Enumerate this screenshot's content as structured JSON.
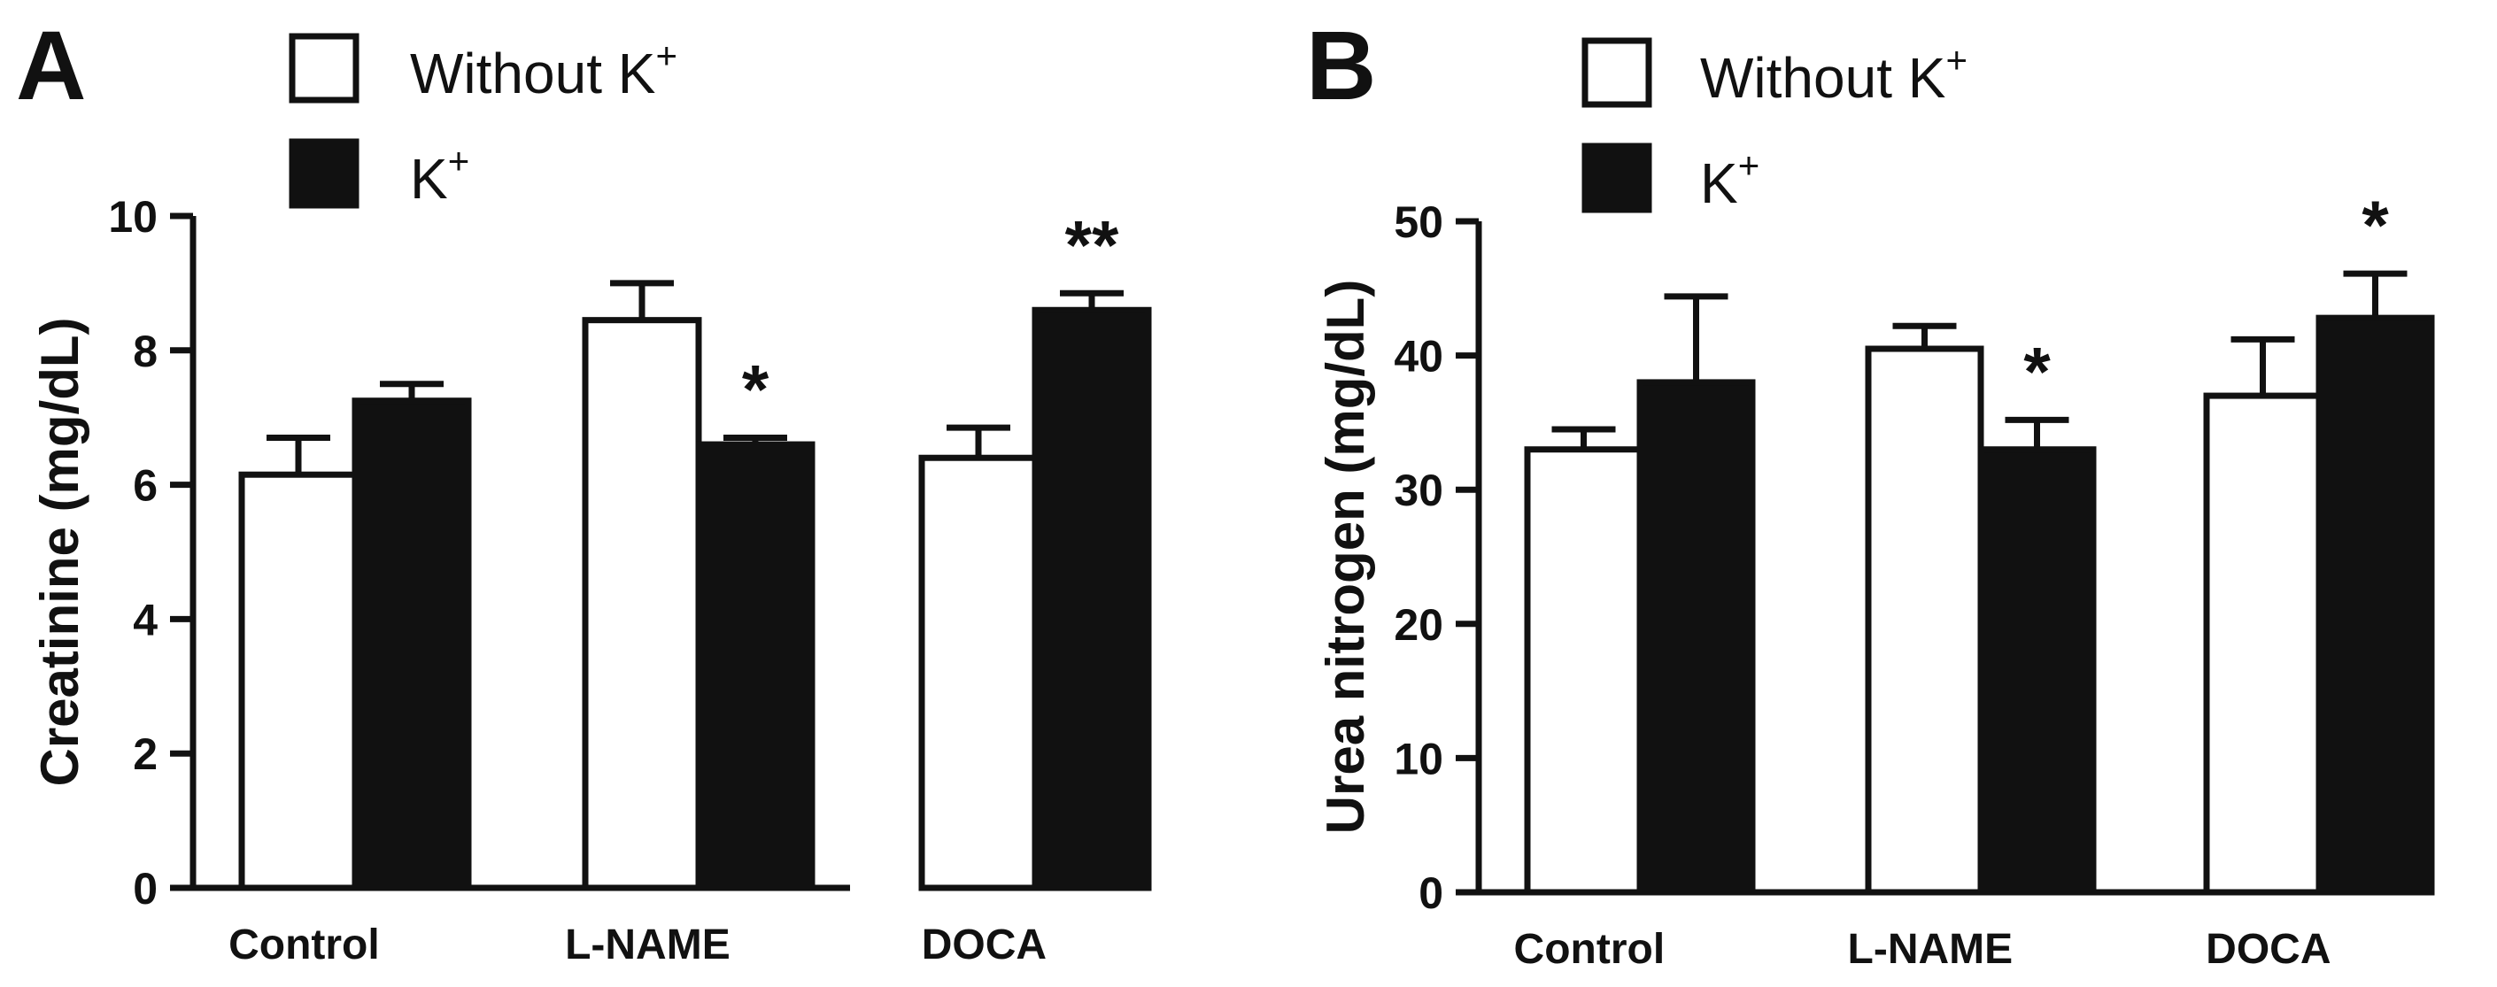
{
  "chart_data": [
    {
      "type": "bar",
      "panel": "A",
      "ylabel": "Creatinine (mg/dL)",
      "xlabel": "",
      "ylim": [
        0,
        10
      ],
      "yticks": [
        0,
        2,
        4,
        6,
        8,
        10
      ],
      "ytick_labels": [
        "0",
        "2",
        "4",
        "6",
        "8",
        "10"
      ],
      "categories": [
        "Control",
        "L-NAME",
        "DOCA"
      ],
      "series": [
        {
          "name": "Without K+",
          "label": "Without K",
          "sup": "+",
          "fill": "#ffffff",
          "values": [
            6.15,
            8.45,
            6.4
          ],
          "errors": [
            0.55,
            0.55,
            0.45
          ]
        },
        {
          "name": "K+",
          "label": "K",
          "sup": "+",
          "fill": "#111111",
          "values": [
            7.25,
            6.6,
            8.6
          ],
          "errors": [
            0.25,
            0.1,
            0.25
          ]
        }
      ],
      "significance": [
        {
          "category": 1,
          "series": 1,
          "label": "*"
        },
        {
          "category": 2,
          "series": 1,
          "label": "**"
        }
      ],
      "grid": false,
      "legend": "top-left"
    },
    {
      "type": "bar",
      "panel": "B",
      "ylabel": "Urea nitrogen (mg/dL)",
      "xlabel": "",
      "ylim": [
        0,
        50
      ],
      "yticks": [
        0,
        10,
        20,
        30,
        40,
        50
      ],
      "ytick_labels": [
        "0",
        "10",
        "20",
        "30",
        "40",
        "50"
      ],
      "categories": [
        "Control",
        "L-NAME",
        "DOCA"
      ],
      "series": [
        {
          "name": "Without K+",
          "label": "Without K",
          "sup": "+",
          "fill": "#ffffff",
          "values": [
            33,
            40.5,
            37
          ],
          "errors": [
            1.5,
            1.7,
            4.2
          ]
        },
        {
          "name": "K+",
          "label": "K",
          "sup": "+",
          "fill": "#111111",
          "values": [
            38,
            33,
            42.8
          ],
          "errors": [
            6.4,
            2.2,
            3.3
          ]
        }
      ],
      "significance": [
        {
          "category": 1,
          "series": 1,
          "label": "*"
        },
        {
          "category": 2,
          "series": 1,
          "label": "*"
        }
      ],
      "grid": false,
      "legend": "top-left"
    }
  ]
}
